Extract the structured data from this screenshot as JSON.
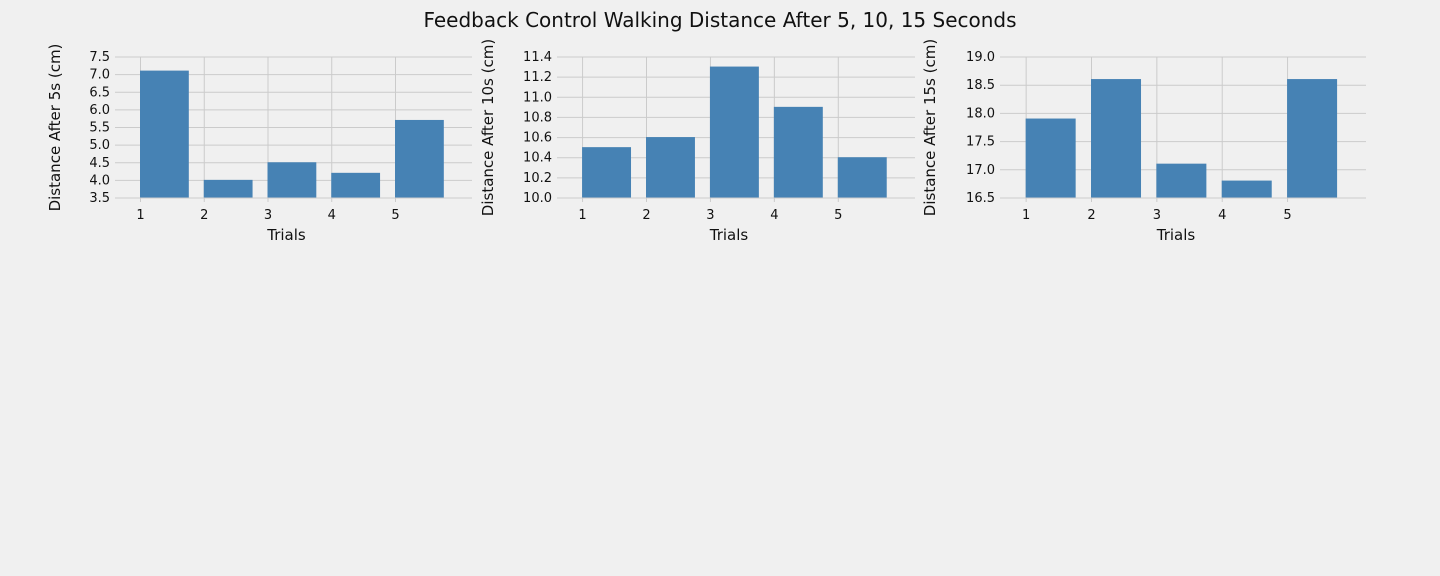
{
  "figure_title": "Feedback Control Walking Distance After 5, 10, 15 Seconds",
  "colors": {
    "background": "#f0f0f0",
    "bar": "#4682b4",
    "grid": "#cbcbcb"
  },
  "chart_data": [
    {
      "type": "bar",
      "title": "",
      "xlabel": "Trials",
      "ylabel": "Distance After 5s (cm)",
      "categories": [
        "1",
        "2",
        "3",
        "4",
        "5"
      ],
      "values": [
        7.1,
        4.0,
        4.5,
        4.2,
        5.7
      ],
      "ylim": [
        3.5,
        7.5
      ],
      "yticks": [
        "3.5",
        "4.0",
        "4.5",
        "5.0",
        "5.5",
        "6.0",
        "6.5",
        "7.0",
        "7.5"
      ],
      "grid": true
    },
    {
      "type": "bar",
      "title": "",
      "xlabel": "Trials",
      "ylabel": "Distance After 10s (cm)",
      "categories": [
        "1",
        "2",
        "3",
        "4",
        "5"
      ],
      "values": [
        10.5,
        10.6,
        11.3,
        10.9,
        10.4
      ],
      "ylim": [
        10.0,
        11.4
      ],
      "yticks": [
        "10.0",
        "10.2",
        "10.4",
        "10.6",
        "10.8",
        "11.0",
        "11.2",
        "11.4"
      ],
      "grid": true
    },
    {
      "type": "bar",
      "title": "",
      "xlabel": "Trials",
      "ylabel": "Distance After 15s (cm)",
      "categories": [
        "1",
        "2",
        "3",
        "4",
        "5"
      ],
      "values": [
        17.9,
        18.6,
        17.1,
        16.8,
        18.6
      ],
      "ylim": [
        16.5,
        19.0
      ],
      "yticks": [
        "16.5",
        "17.0",
        "17.5",
        "18.0",
        "18.5",
        "19.0"
      ],
      "grid": true
    }
  ]
}
